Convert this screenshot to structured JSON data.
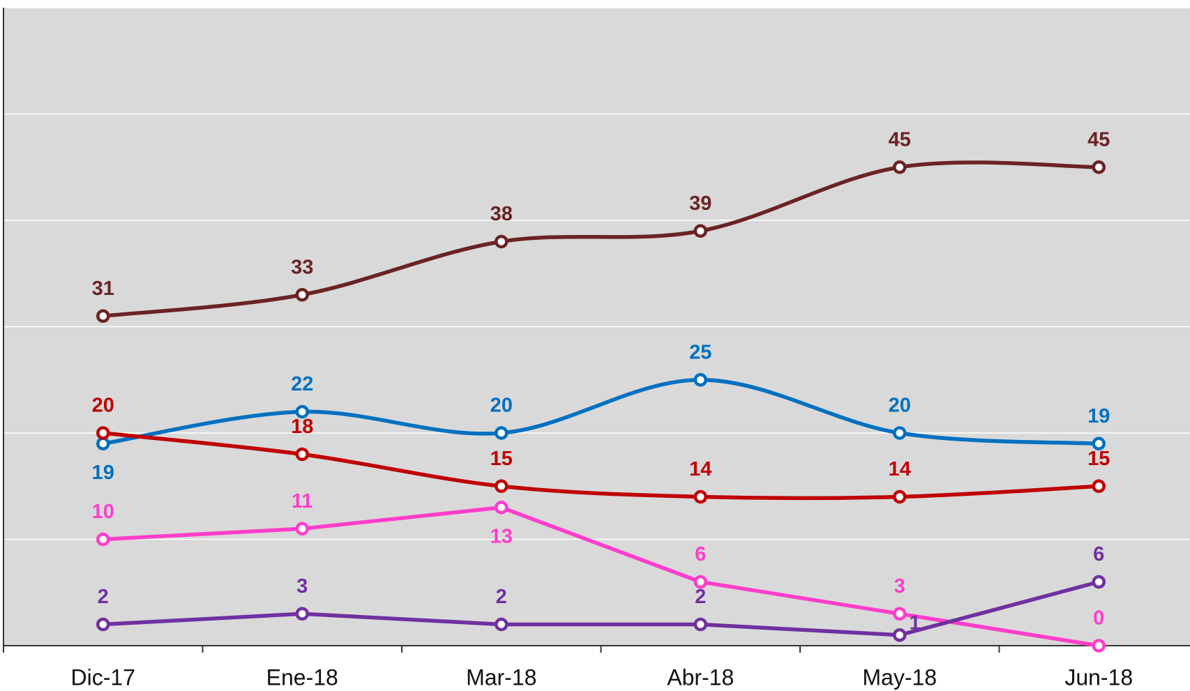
{
  "chart_data": {
    "type": "line",
    "categories": [
      "Dic-17",
      "Ene-18",
      "Mar-18",
      "Abr-18",
      "May-18",
      "Jun-18"
    ],
    "series": [
      {
        "color": "#6B2323",
        "smooth": true,
        "values": [
          31,
          33,
          38,
          39,
          45,
          45
        ]
      },
      {
        "color": "#0070C0",
        "smooth": true,
        "values": [
          19,
          22,
          20,
          25,
          20,
          19
        ]
      },
      {
        "color": "#C00000",
        "smooth": true,
        "values": [
          20,
          18,
          15,
          14,
          14,
          15
        ]
      },
      {
        "color": "#FF3DCB",
        "smooth": false,
        "values": [
          10,
          11,
          13,
          6,
          3,
          0
        ]
      },
      {
        "color": "#7030A0",
        "smooth": false,
        "values": [
          2,
          3,
          2,
          2,
          1,
          6
        ]
      }
    ],
    "ylim": [
      0,
      60
    ],
    "yticks": [
      0,
      10,
      20,
      30,
      40,
      50,
      60
    ],
    "grid": true
  }
}
